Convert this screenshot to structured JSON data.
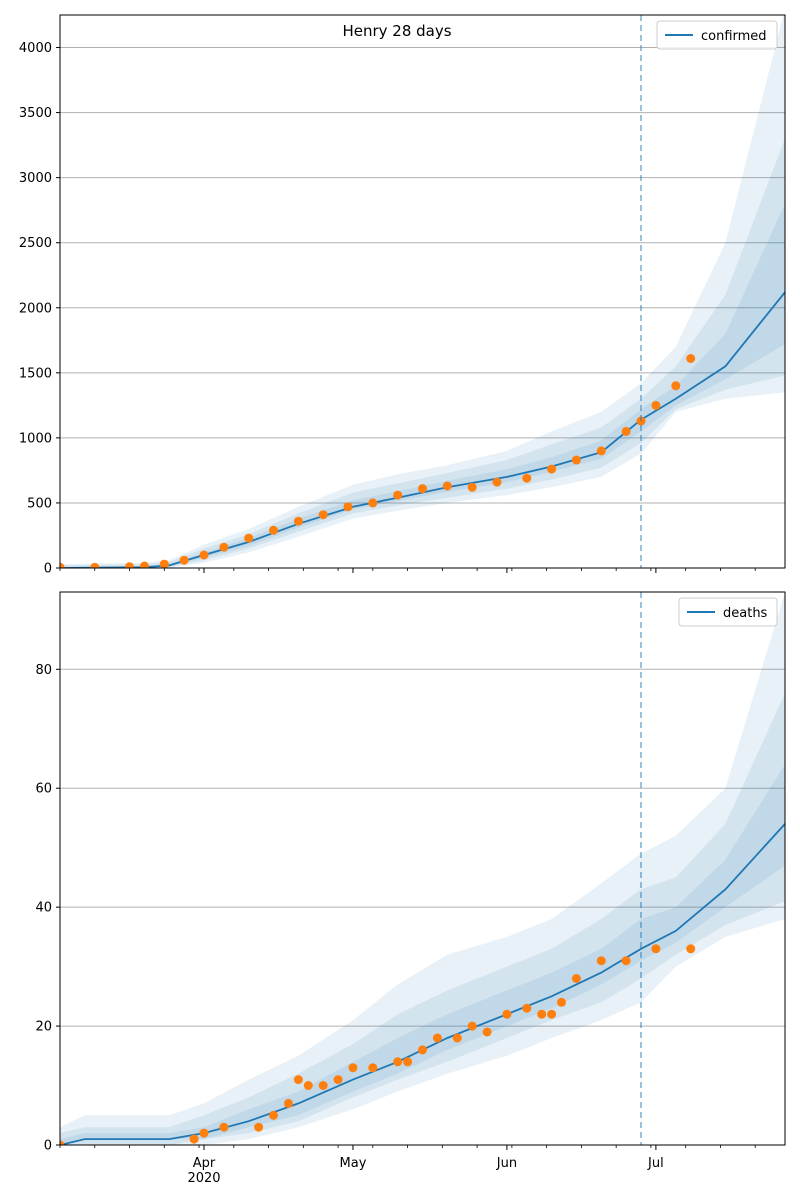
{
  "chart_data": [
    {
      "type": "line",
      "title": "Henry 28 days",
      "xlabel": "",
      "ylabel": "",
      "ylim": [
        0,
        4250
      ],
      "yticks": [
        0,
        500,
        1000,
        1500,
        2000,
        2500,
        3000,
        3500,
        4000
      ],
      "xlim": [
        "2020-03-03",
        "2020-07-27"
      ],
      "xticks": [
        {
          "date": "2020-04-01",
          "label": "Apr",
          "sublabel": "2020"
        },
        {
          "date": "2020-05-01",
          "label": "May",
          "sublabel": ""
        },
        {
          "date": "2020-06-01",
          "label": "Jun",
          "sublabel": ""
        },
        {
          "date": "2020-07-01",
          "label": "Jul",
          "sublabel": ""
        }
      ],
      "grid": "y",
      "legend": {
        "position": "top-right",
        "entries": [
          "confirmed"
        ]
      },
      "forecast_start": "2020-06-28",
      "colors": {
        "model": "#1f77b4",
        "observed": "#ff7f0e",
        "band": "#1f77b4"
      },
      "series": [
        {
          "name": "confirmed",
          "kind": "model",
          "x": [
            "2020-03-03",
            "2020-03-20",
            "2020-03-25",
            "2020-04-01",
            "2020-04-10",
            "2020-04-20",
            "2020-05-01",
            "2020-05-10",
            "2020-05-20",
            "2020-06-01",
            "2020-06-10",
            "2020-06-20",
            "2020-06-28",
            "2020-07-05",
            "2020-07-15",
            "2020-07-27"
          ],
          "y": [
            0,
            5,
            20,
            100,
            200,
            340,
            470,
            540,
            620,
            700,
            780,
            890,
            1140,
            1300,
            1550,
            2120
          ],
          "bands": [
            {
              "lo": [
                0,
                0,
                0,
                40,
                120,
                240,
                380,
                440,
                500,
                560,
                620,
                700,
                880,
                1200,
                1300,
                1350
              ],
              "hi": [
                30,
                40,
                60,
                180,
                300,
                470,
                640,
                720,
                790,
                900,
                1050,
                1200,
                1420,
                1700,
                2500,
                4300
              ]
            },
            {
              "lo": [
                0,
                0,
                5,
                60,
                150,
                280,
                420,
                480,
                540,
                610,
                680,
                770,
                960,
                1220,
                1370,
                1480
              ],
              "hi": [
                20,
                30,
                45,
                150,
                260,
                420,
                580,
                650,
                730,
                830,
                950,
                1080,
                1300,
                1550,
                2100,
                3300
              ]
            },
            {
              "lo": [
                0,
                2,
                10,
                80,
                170,
                310,
                450,
                515,
                585,
                660,
                740,
                840,
                1050,
                1250,
                1450,
                1720
              ],
              "hi": [
                10,
                15,
                30,
                120,
                230,
                380,
                520,
                590,
                670,
                760,
                850,
                980,
                1220,
                1400,
                1800,
                2800
              ]
            }
          ]
        },
        {
          "name": "",
          "kind": "observed",
          "x": [
            "2020-03-03",
            "2020-03-10",
            "2020-03-17",
            "2020-03-20",
            "2020-03-24",
            "2020-03-28",
            "2020-04-01",
            "2020-04-05",
            "2020-04-10",
            "2020-04-15",
            "2020-04-20",
            "2020-04-25",
            "2020-04-30",
            "2020-05-05",
            "2020-05-10",
            "2020-05-15",
            "2020-05-20",
            "2020-05-25",
            "2020-05-30",
            "2020-06-05",
            "2020-06-10",
            "2020-06-15",
            "2020-06-20",
            "2020-06-25",
            "2020-06-28",
            "2020-07-01",
            "2020-07-05",
            "2020-07-08"
          ],
          "y": [
            5,
            5,
            10,
            15,
            30,
            60,
            100,
            160,
            230,
            290,
            360,
            410,
            470,
            500,
            560,
            610,
            630,
            620,
            660,
            690,
            760,
            830,
            900,
            1050,
            1130,
            1250,
            1400,
            1610
          ]
        }
      ]
    },
    {
      "type": "line",
      "title": "",
      "xlabel": "",
      "ylabel": "",
      "ylim": [
        0,
        93
      ],
      "yticks": [
        0,
        20,
        40,
        60,
        80
      ],
      "xlim": [
        "2020-03-03",
        "2020-07-27"
      ],
      "xticks": [
        {
          "date": "2020-04-01",
          "label": "Apr",
          "sublabel": "2020"
        },
        {
          "date": "2020-05-01",
          "label": "May",
          "sublabel": ""
        },
        {
          "date": "2020-06-01",
          "label": "Jun",
          "sublabel": ""
        },
        {
          "date": "2020-07-01",
          "label": "Jul",
          "sublabel": ""
        }
      ],
      "grid": "y",
      "legend": {
        "position": "top-right",
        "entries": [
          "deaths"
        ]
      },
      "forecast_start": "2020-06-28",
      "colors": {
        "model": "#1f77b4",
        "observed": "#ff7f0e",
        "band": "#1f77b4"
      },
      "series": [
        {
          "name": "deaths",
          "kind": "model",
          "x": [
            "2020-03-03",
            "2020-03-08",
            "2020-03-25",
            "2020-04-01",
            "2020-04-10",
            "2020-04-20",
            "2020-05-01",
            "2020-05-10",
            "2020-05-20",
            "2020-06-01",
            "2020-06-10",
            "2020-06-20",
            "2020-06-28",
            "2020-07-05",
            "2020-07-15",
            "2020-07-27"
          ],
          "y": [
            0,
            1,
            1,
            2,
            4,
            7,
            11,
            14,
            18,
            22,
            25,
            29,
            33,
            36,
            43,
            54
          ],
          "bands": [
            {
              "lo": [
                0,
                0,
                0,
                0,
                1,
                3,
                6,
                9,
                12,
                15,
                18,
                21,
                24,
                30,
                35,
                38
              ],
              "hi": [
                3,
                5,
                5,
                7,
                11,
                15,
                21,
                27,
                32,
                35,
                38,
                44,
                49,
                52,
                60,
                93
              ]
            },
            {
              "lo": [
                0,
                0,
                0,
                1,
                2,
                4,
                8,
                11,
                14,
                18,
                21,
                24,
                28,
                32,
                37,
                41
              ],
              "hi": [
                2,
                3,
                3,
                5,
                8,
                12,
                17,
                22,
                26,
                30,
                33,
                38,
                43,
                45,
                54,
                76
              ]
            },
            {
              "lo": [
                0,
                1,
                1,
                1,
                3,
                5,
                9,
                12,
                16,
                20,
                23,
                27,
                31,
                34,
                40,
                47
              ],
              "hi": [
                1,
                2,
                2,
                3,
                6,
                9,
                14,
                18,
                22,
                26,
                29,
                33,
                38,
                40,
                48,
                64
              ]
            }
          ]
        },
        {
          "name": "",
          "kind": "observed",
          "x": [
            "2020-03-03",
            "2020-03-30",
            "2020-04-01",
            "2020-04-05",
            "2020-04-12",
            "2020-04-15",
            "2020-04-18",
            "2020-04-20",
            "2020-04-22",
            "2020-04-25",
            "2020-04-28",
            "2020-05-01",
            "2020-05-05",
            "2020-05-10",
            "2020-05-12",
            "2020-05-15",
            "2020-05-18",
            "2020-05-22",
            "2020-05-25",
            "2020-05-28",
            "2020-06-01",
            "2020-06-05",
            "2020-06-08",
            "2020-06-10",
            "2020-06-12",
            "2020-06-15",
            "2020-06-20",
            "2020-06-25",
            "2020-07-01",
            "2020-07-08"
          ],
          "y": [
            0,
            1,
            2,
            3,
            3,
            5,
            7,
            11,
            10,
            10,
            11,
            13,
            13,
            14,
            14,
            16,
            18,
            18,
            20,
            19,
            22,
            23,
            22,
            22,
            24,
            28,
            31,
            31,
            33,
            33
          ]
        }
      ]
    }
  ]
}
